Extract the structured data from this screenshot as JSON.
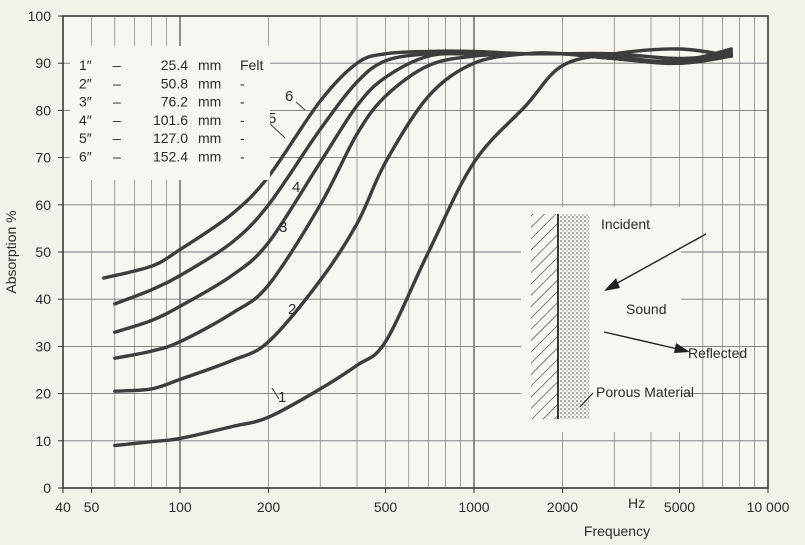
{
  "chart_data": {
    "type": "line",
    "title": "",
    "xlabel": "Frequency",
    "xunit": "Hz",
    "ylabel": "Absorption %",
    "xscale": "log",
    "xlim": [
      40,
      10000
    ],
    "ylim": [
      0,
      100
    ],
    "grid": true,
    "x_ticks": [
      40,
      50,
      100,
      200,
      500,
      1000,
      2000,
      5000,
      10000
    ],
    "x_tick_labels": [
      "40",
      "50",
      "100",
      "200",
      "500",
      "1000",
      "2000",
      "5000",
      "10 000"
    ],
    "y_ticks": [
      0,
      10,
      20,
      30,
      40,
      50,
      60,
      70,
      80,
      90,
      100
    ],
    "y_tick_labels": [
      "0",
      "10",
      "20",
      "30",
      "40",
      "50",
      "60",
      "70",
      "80",
      "90",
      "100"
    ],
    "legend": {
      "placement": "top-left",
      "entries": [
        {
          "number": "1″",
          "dash": "–",
          "value": "25.4",
          "unit": "mm",
          "suffix": "Felt"
        },
        {
          "number": "2″",
          "dash": "–",
          "value": "50.8",
          "unit": "mm",
          "suffix": "-"
        },
        {
          "number": "3″",
          "dash": "–",
          "value": "76.2",
          "unit": "mm",
          "suffix": "-"
        },
        {
          "number": "4″",
          "dash": "–",
          "value": "101.6",
          "unit": "mm",
          "suffix": "-"
        },
        {
          "number": "5″",
          "dash": "–",
          "value": "127.0",
          "unit": "mm",
          "suffix": "-"
        },
        {
          "number": "6″",
          "dash": "–",
          "value": "152.4",
          "unit": "mm",
          "suffix": "-"
        }
      ]
    },
    "series": [
      {
        "name": "1",
        "x": [
          60,
          80,
          100,
          150,
          200,
          300,
          400,
          500,
          700,
          1000,
          1500,
          2000,
          3000,
          5000,
          7500
        ],
        "y": [
          9,
          9.8,
          10.5,
          13,
          15,
          21,
          26,
          31,
          50,
          69,
          81,
          89.5,
          92,
          93,
          91.5
        ]
      },
      {
        "name": "2",
        "x": [
          60,
          80,
          100,
          150,
          200,
          300,
          400,
          500,
          700,
          1000,
          1500,
          2000,
          3000,
          5000,
          7500
        ],
        "y": [
          20.5,
          21,
          23,
          27,
          31,
          44,
          56,
          69,
          83,
          90,
          92,
          92,
          91,
          90,
          91.5
        ]
      },
      {
        "name": "3",
        "x": [
          60,
          80,
          100,
          150,
          200,
          300,
          400,
          500,
          700,
          1000,
          1500,
          2000,
          3000,
          5000,
          7500
        ],
        "y": [
          27.5,
          29,
          31,
          37,
          43,
          60,
          75,
          83,
          89.5,
          91.5,
          92,
          92,
          92,
          91,
          92
        ]
      },
      {
        "name": "4",
        "x": [
          60,
          80,
          100,
          150,
          200,
          300,
          400,
          500,
          700,
          1000,
          1500,
          2000,
          3000,
          5000,
          7500
        ],
        "y": [
          33,
          35.5,
          38.5,
          45,
          52,
          69,
          81,
          87,
          91.5,
          92,
          92,
          92,
          91.5,
          90,
          92
        ]
      },
      {
        "name": "5",
        "x": [
          60,
          80,
          100,
          150,
          200,
          300,
          400,
          500,
          700,
          1000,
          1500,
          2000,
          3000,
          5000,
          7500
        ],
        "y": [
          39,
          42,
          45,
          52,
          60,
          76,
          86,
          90.5,
          92,
          92,
          92,
          92,
          91,
          90,
          92.5
        ]
      },
      {
        "name": "6",
        "x": [
          55,
          80,
          100,
          150,
          200,
          300,
          400,
          500,
          700,
          1000,
          1500,
          2000,
          3000,
          5000,
          7500
        ],
        "y": [
          44.5,
          47,
          50.5,
          58,
          66,
          82,
          90,
          92,
          92.5,
          92.5,
          92,
          92,
          91,
          90.5,
          93
        ]
      }
    ],
    "inset": {
      "labels": {
        "incident": "Incident",
        "sound": "Sound",
        "reflected": "Reflected",
        "material": "Porous Material"
      }
    }
  }
}
